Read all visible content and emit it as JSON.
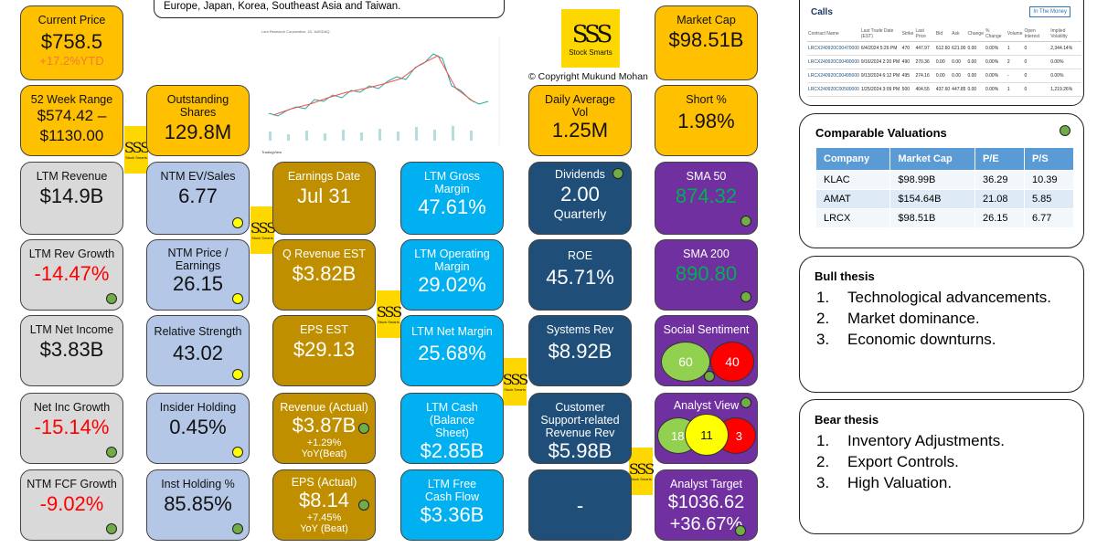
{
  "banner_text": "Europe, Japan, Korea, Southeast Asia and Taiwan.",
  "copyright": "© Copyright Mukund Mohan",
  "logo": {
    "glyph": "SSS",
    "text": "Stock Smarts"
  },
  "chart_caption": "Lam Research Corporation, 1D, NASDAQ",
  "chart_footer": "TradingView",
  "tiles": {
    "current_price": {
      "label": "Current Price",
      "value": "$758.5",
      "sub": "+17.2%YTD"
    },
    "week52": {
      "label": "52 Week Range",
      "value": "$574.42 – $1130.00"
    },
    "outstanding": {
      "label": "Outstanding Shares",
      "value": "129.8M"
    },
    "daily_vol": {
      "label": "Daily Average Vol",
      "value": "1.25M"
    },
    "market_cap": {
      "label": "Market Cap",
      "value": "$98.51B"
    },
    "short": {
      "label": "Short %",
      "value": "1.98%"
    },
    "ltm_rev": {
      "label": "LTM Revenue",
      "value": "$14.9B"
    },
    "ntm_ev": {
      "label": "NTM EV/Sales",
      "value": "6.77"
    },
    "earn_date": {
      "label": "Earnings Date",
      "value": "Jul 31"
    },
    "gross_margin": {
      "label": "LTM Gross Margin",
      "value": "47.61%"
    },
    "dividends": {
      "label": "Dividends",
      "value": "2.00",
      "sub": "Quarterly"
    },
    "sma50": {
      "label": "SMA 50",
      "value": "874.32"
    },
    "rev_growth": {
      "label": "LTM Rev Growth",
      "value": "-14.47%"
    },
    "ntm_pe": {
      "label": "NTM Price / Earnings",
      "value": "26.15"
    },
    "q_rev_est": {
      "label": "Q Revenue EST",
      "value": "$3.82B"
    },
    "op_margin": {
      "label": "LTM Operating Margin",
      "value": "29.02%"
    },
    "roe": {
      "label": "ROE",
      "value": "45.71%"
    },
    "sma200": {
      "label": "SMA 200",
      "value": "890.80"
    },
    "net_income": {
      "label": "LTM Net Income",
      "value": "$3.83B"
    },
    "rel_strength": {
      "label": "Relative Strength",
      "value": "43.02"
    },
    "eps_est": {
      "label": "EPS EST",
      "value": "$29.13"
    },
    "net_margin": {
      "label": "LTM Net Margin",
      "value": "25.68%"
    },
    "systems_rev": {
      "label": "Systems Rev",
      "value": "$8.92B"
    },
    "social": {
      "label": "Social Sentiment",
      "pos": "60",
      "neg": "40"
    },
    "net_inc_growth": {
      "label": "Net Inc Growth",
      "value": "-15.14%"
    },
    "insider": {
      "label": "Insider Holding",
      "value": "0.45%"
    },
    "rev_actual": {
      "label": "Revenue (Actual)",
      "value": "$3.87B",
      "sub": "+1.29% YoY(Beat)"
    },
    "ltm_cash": {
      "label": "LTM Cash (Balance Sheet)",
      "value": "$2.85B"
    },
    "customer_rev": {
      "label": "Customer Support-related Revenue Rev",
      "value": "$5.98B"
    },
    "analyst_view": {
      "label": "Analyst View",
      "buy": "18",
      "hold": "11",
      "sell": "3"
    },
    "fcf_growth": {
      "label": "NTM FCF Growth",
      "value": "-9.02%"
    },
    "inst": {
      "label": "Inst Holding %",
      "value": "85.85%"
    },
    "eps_actual": {
      "label": "EPS (Actual)",
      "value": "$8.14",
      "sub": "+7.45% YoY (Beat)"
    },
    "fcf": {
      "label": "LTM Free Cash Flow",
      "value": "$3.36B"
    },
    "blank": {
      "value": "-"
    },
    "target": {
      "label": "Analyst Target",
      "value": "$1036.62",
      "sub": "+36.67%"
    }
  },
  "calls": {
    "title": "Calls",
    "tab": "In The Money",
    "headers": [
      "Contract Name",
      "Last Trade Date (EST)",
      "Strike",
      "Last Price",
      "Bid",
      "Ask",
      "Change",
      "% Change",
      "Volume",
      "Open Interest",
      "Implied Volatility"
    ],
    "rows": [
      [
        "LRCX240920C00470000",
        "6/4/2024 5:26 PM",
        "470",
        "447.97",
        "612.60",
        "621.00",
        "0.00",
        "0.00%",
        "1",
        "0",
        "2,344.14%"
      ],
      [
        "LRCX240920C00490000",
        "9/16/2024 2:20 PM",
        "490",
        "270.36",
        "0.00",
        "0.00",
        "0.00",
        "0.00%",
        "2",
        "0",
        "0.00%"
      ],
      [
        "LRCX240920C00495000",
        "9/13/2024 6:12 PM",
        "495",
        "274.16",
        "0.00",
        "0.00",
        "0.00",
        "0.00%",
        "-",
        "0",
        "0.00%"
      ],
      [
        "LRCX240920C00500000",
        "1/25/2024 3:09 PM",
        "500",
        "404.55",
        "437.60",
        "447.85",
        "0.00",
        "0.00%",
        "1",
        "0",
        "1,219.26%"
      ]
    ]
  },
  "comparable": {
    "title": "Comparable Valuations",
    "headers": [
      "Company",
      "Market Cap",
      "P/E",
      "P/S"
    ],
    "rows": [
      [
        "KLAC",
        "$98.99B",
        "36.29",
        "10.39"
      ],
      [
        "AMAT",
        "$154.64B",
        "21.08",
        "5.85"
      ],
      [
        "LRCX",
        "$98.51B",
        "26.15",
        "6.77"
      ]
    ]
  },
  "bull": {
    "title": "Bull thesis",
    "items": [
      "Technological advancements.",
      "Market dominance.",
      "Economic downturns."
    ]
  },
  "bear": {
    "title": "Bear thesis",
    "items": [
      "Inventory Adjustments.",
      "Export Controls.",
      "High Valuation."
    ]
  },
  "colors": {
    "gold": "#FFC000",
    "olive": "#BF8F00",
    "cyan": "#00B0F0",
    "navy": "#1F4E79",
    "purple": "#7030A0"
  }
}
